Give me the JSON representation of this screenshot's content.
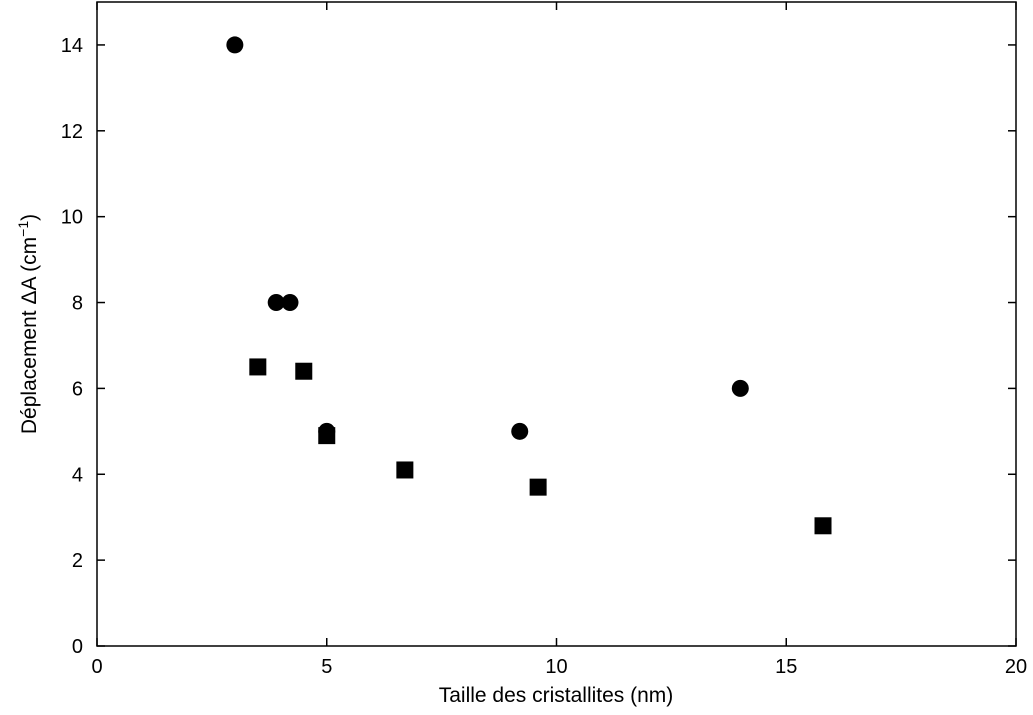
{
  "chart_data": {
    "type": "scatter",
    "title": "",
    "xlabel": "Taille des cristallites (nm)",
    "ylabel_prefix": "Déplacement ΔA (cm",
    "ylabel_sup": "−1",
    "ylabel_suffix": ")",
    "xlim": [
      0,
      20
    ],
    "ylim": [
      0,
      15
    ],
    "x_ticks": [
      0,
      5,
      10,
      15,
      20
    ],
    "y_ticks": [
      0,
      2,
      4,
      6,
      8,
      10,
      12,
      14
    ],
    "x_tick_labels": [
      "0",
      "5",
      "10",
      "15",
      "20"
    ],
    "y_tick_labels": [
      "0",
      "2",
      "4",
      "6",
      "8",
      "10",
      "12",
      "14"
    ],
    "grid": false,
    "series": [
      {
        "marker": "circle",
        "color": "#000000",
        "points": [
          {
            "x": 3.0,
            "y": 14.0
          },
          {
            "x": 3.9,
            "y": 8.0
          },
          {
            "x": 4.2,
            "y": 8.0
          },
          {
            "x": 5.0,
            "y": 5.0
          },
          {
            "x": 9.2,
            "y": 5.0
          },
          {
            "x": 14.0,
            "y": 6.0
          }
        ]
      },
      {
        "marker": "square",
        "color": "#000000",
        "points": [
          {
            "x": 3.5,
            "y": 6.5
          },
          {
            "x": 4.5,
            "y": 6.4
          },
          {
            "x": 5.0,
            "y": 4.9
          },
          {
            "x": 6.7,
            "y": 4.1
          },
          {
            "x": 9.6,
            "y": 3.7
          },
          {
            "x": 15.8,
            "y": 2.8
          }
        ]
      }
    ]
  }
}
